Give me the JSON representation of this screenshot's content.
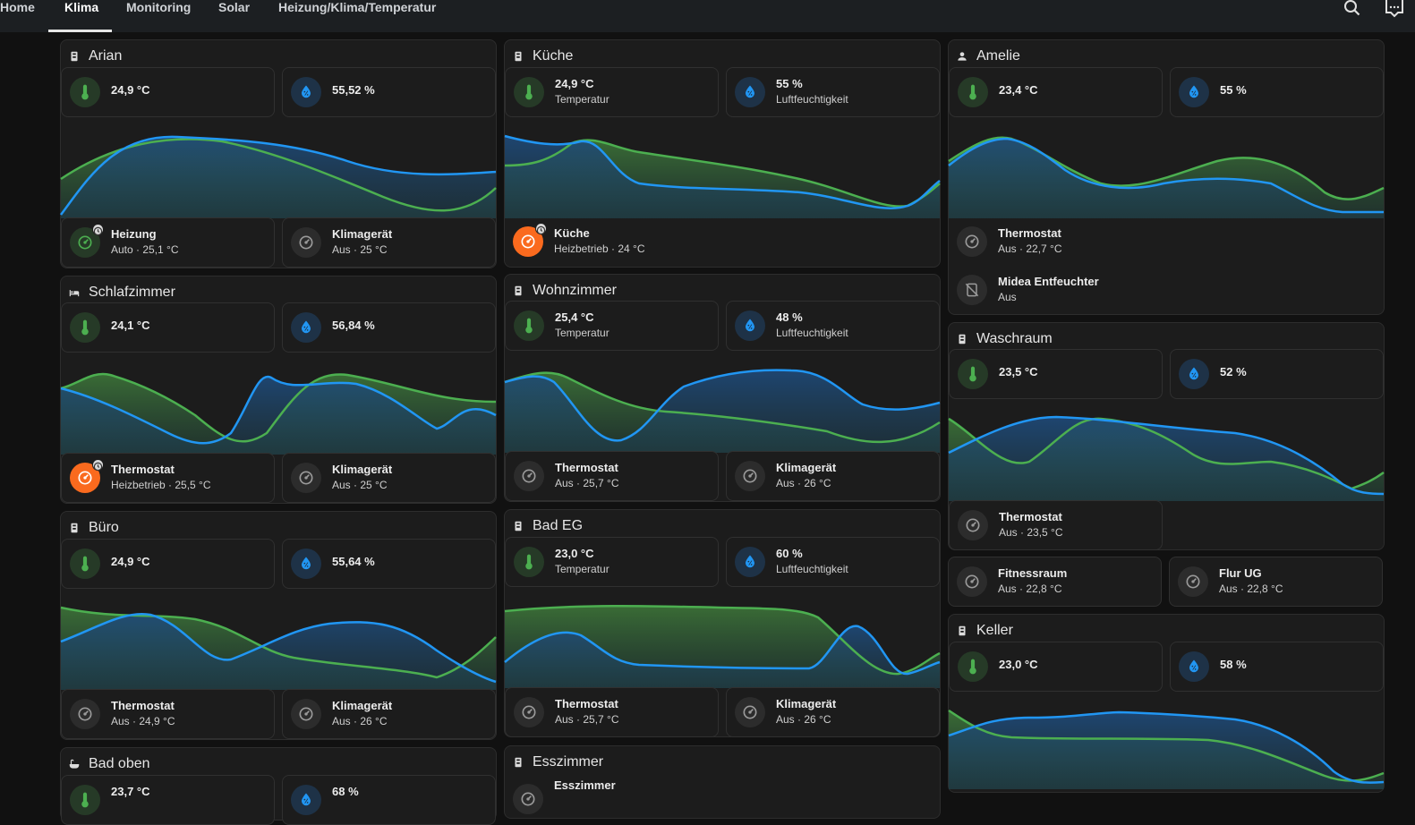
{
  "tabs": [
    "Home",
    "Klima",
    "Monitoring",
    "Solar",
    "Heizung/Klima/Temperatur"
  ],
  "colors": {
    "temperature": "#4caf50",
    "humidity": "#2196f3",
    "heating": "#fa6a1e",
    "background": "#111111",
    "card": "#1c1c1c"
  },
  "rooms": {
    "arian": {
      "title": "Arian",
      "temp": "24,9 °C",
      "hum": "55,52 %",
      "c1_name": "Heizung",
      "c1_state": "Auto · 25,1 °C",
      "c2_name": "Klimagerät",
      "c2_state": "Aus · 25 °C"
    },
    "kueche": {
      "title": "Küche",
      "temp": "24,9 °C",
      "temp_label": "Temperatur",
      "hum": "55 %",
      "hum_label": "Luftfeuchtigkeit",
      "c1_name": "Küche",
      "c1_state": "Heizbetrieb · 24 °C"
    },
    "amelie": {
      "title": "Amelie",
      "temp": "23,4 °C",
      "hum": "55 %",
      "c1_name": "Thermostat",
      "c1_state": "Aus · 22,7 °C",
      "c2_name": "Midea Entfeuchter",
      "c2_state": "Aus"
    },
    "schlafzimmer": {
      "title": "Schlafzimmer",
      "temp": "24,1 °C",
      "hum": "56,84 %",
      "c1_name": "Thermostat",
      "c1_state": "Heizbetrieb · 25,5 °C",
      "c2_name": "Klimagerät",
      "c2_state": "Aus · 25 °C"
    },
    "wohnzimmer": {
      "title": "Wohnzimmer",
      "temp": "25,4 °C",
      "temp_label": "Temperatur",
      "hum": "48 %",
      "hum_label": "Luftfeuchtigkeit",
      "c1_name": "Thermostat",
      "c1_state": "Aus · 25,7 °C",
      "c2_name": "Klimagerät",
      "c2_state": "Aus · 26 °C"
    },
    "waschraum": {
      "title": "Waschraum",
      "temp": "23,5 °C",
      "hum": "52 %",
      "c1_name": "Thermostat",
      "c1_state": "Aus · 23,5 °C"
    },
    "fitnessraum": {
      "name": "Fitnessraum",
      "state": "Aus · 22,8 °C"
    },
    "flur_ug": {
      "name": "Flur UG",
      "state": "Aus · 22,8 °C"
    },
    "buero": {
      "title": "Büro",
      "temp": "24,9 °C",
      "hum": "55,64 %",
      "c1_name": "Thermostat",
      "c1_state": "Aus · 24,9 °C",
      "c2_name": "Klimagerät",
      "c2_state": "Aus · 26 °C"
    },
    "bad_eg": {
      "title": "Bad EG",
      "temp": "23,0 °C",
      "temp_label": "Temperatur",
      "hum": "60 %",
      "hum_label": "Luftfeuchtigkeit",
      "c1_name": "Thermostat",
      "c1_state": "Aus · 25,7 °C",
      "c2_name": "Klimagerät",
      "c2_state": "Aus · 26 °C"
    },
    "keller": {
      "title": "Keller",
      "temp": "23,0 °C",
      "hum": "58 %"
    },
    "bad_oben": {
      "title": "Bad oben",
      "temp": "23,7 °C",
      "hum": "68 %"
    },
    "esszimmer": {
      "title": "Esszimmer",
      "c1_name": "Esszimmer"
    }
  }
}
